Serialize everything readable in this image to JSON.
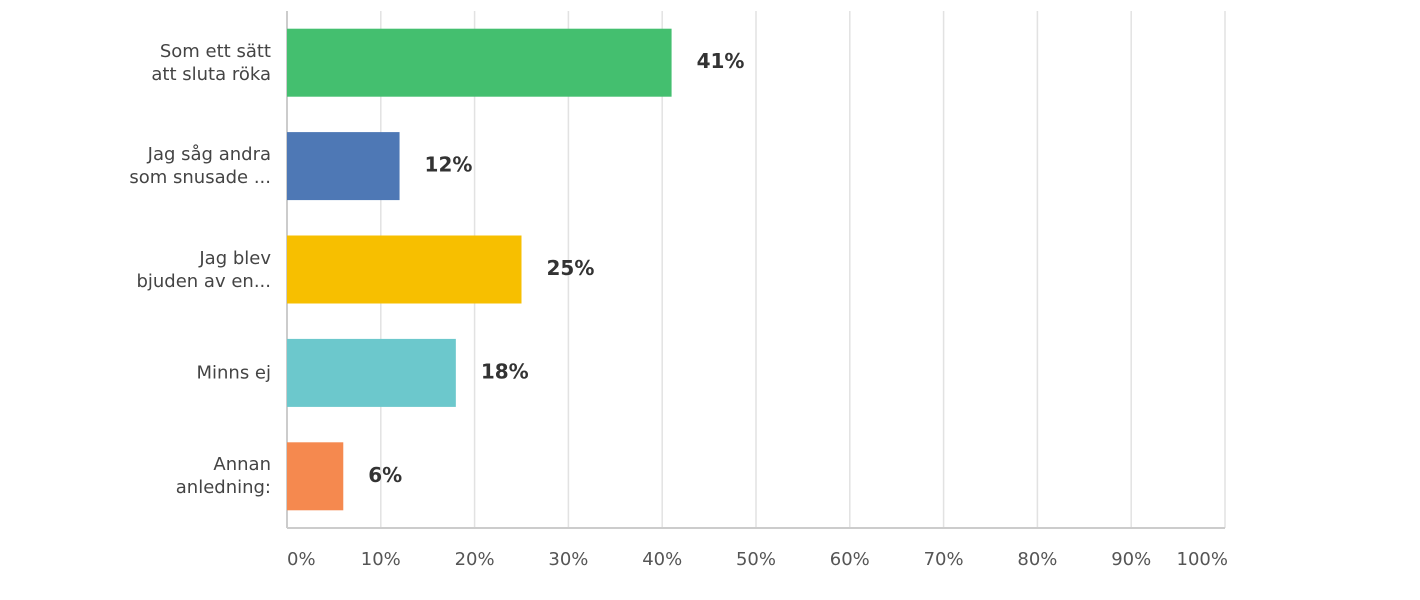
{
  "chart_data": {
    "type": "bar",
    "orientation": "horizontal",
    "categories": [
      "Som ett sätt\natt sluta röka",
      "Jag såg andra\nsom snusade ...",
      "Jag blev\nbjuden av en...",
      "Minns ej",
      "Annan\nanledning:"
    ],
    "values": [
      41,
      12,
      25,
      18,
      6
    ],
    "value_labels": [
      "41%",
      "12%",
      "25%",
      "18%",
      "6%"
    ],
    "colors": [
      "#44bf6f",
      "#4e78b5",
      "#f7bf00",
      "#6cc8cc",
      "#f5894f"
    ],
    "xlim": [
      0,
      100
    ],
    "xticks": [
      {
        "value": 0,
        "label": "0%"
      },
      {
        "value": 10,
        "label": "10%"
      },
      {
        "value": 20,
        "label": "20%"
      },
      {
        "value": 30,
        "label": "30%"
      },
      {
        "value": 40,
        "label": "40%"
      },
      {
        "value": 50,
        "label": "50%"
      },
      {
        "value": 60,
        "label": "60%"
      },
      {
        "value": 70,
        "label": "70%"
      },
      {
        "value": 80,
        "label": "80%"
      },
      {
        "value": 90,
        "label": "90%"
      },
      {
        "value": 100,
        "label": "100%"
      }
    ],
    "grid": true
  }
}
